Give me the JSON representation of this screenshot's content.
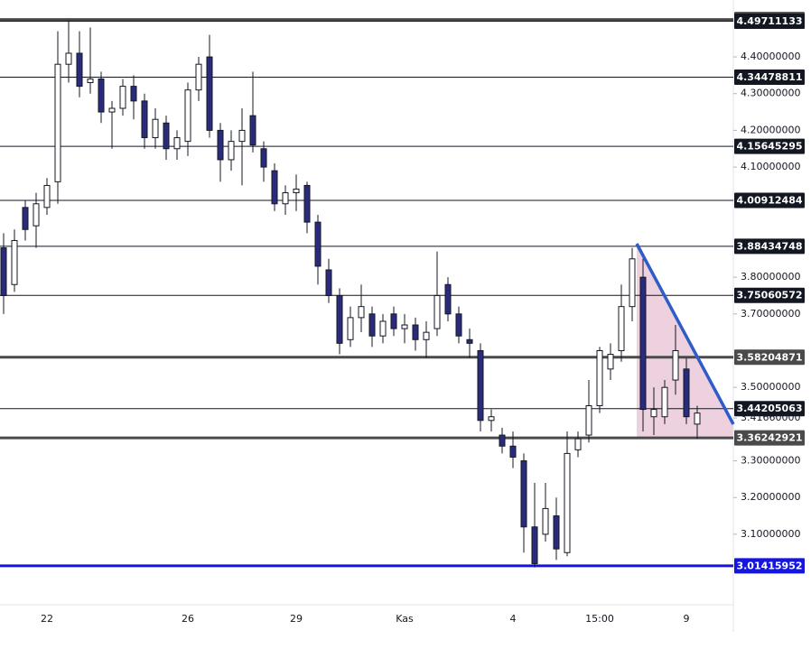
{
  "chart_data": {
    "type": "candlestick",
    "categories": [
      null,
      null,
      null,
      null,
      "22",
      null,
      null,
      null,
      null,
      null,
      null,
      null,
      null,
      null,
      null,
      null,
      null,
      "26",
      null,
      null,
      null,
      null,
      null,
      null,
      null,
      null,
      null,
      "29",
      null,
      null,
      null,
      null,
      null,
      null,
      null,
      null,
      null,
      "Kas",
      null,
      null,
      null,
      null,
      null,
      null,
      null,
      null,
      null,
      "4",
      null,
      null,
      null,
      null,
      null,
      null,
      null,
      "15:00",
      null,
      null,
      null,
      null,
      null,
      null,
      null,
      "9",
      null
    ],
    "open": [
      3.88,
      3.78,
      3.99,
      3.94,
      3.99,
      4.06,
      4.38,
      4.41,
      4.33,
      4.34,
      4.25,
      4.26,
      4.32,
      4.28,
      4.18,
      4.22,
      4.15,
      4.17,
      4.31,
      4.4,
      4.2,
      4.12,
      4.17,
      4.24,
      4.15,
      4.09,
      4.0,
      4.03,
      4.05,
      3.95,
      3.82,
      3.75,
      3.63,
      3.69,
      3.7,
      3.64,
      3.7,
      3.66,
      3.67,
      3.63,
      3.66,
      3.78,
      3.7,
      3.63,
      3.6,
      3.41,
      3.37,
      3.34,
      3.3,
      3.12,
      3.1,
      3.15,
      3.05,
      3.33,
      3.37,
      3.45,
      3.55,
      3.6,
      3.72,
      3.8,
      3.42,
      3.42,
      3.52,
      3.55,
      3.4
    ],
    "high": [
      3.92,
      3.93,
      4.01,
      4.03,
      4.07,
      4.47,
      4.5,
      4.47,
      4.48,
      4.36,
      4.28,
      4.34,
      4.35,
      4.3,
      4.26,
      4.24,
      4.2,
      4.33,
      4.4,
      4.46,
      4.22,
      4.2,
      4.26,
      4.36,
      4.17,
      4.11,
      4.05,
      4.08,
      4.06,
      3.97,
      3.85,
      3.77,
      3.72,
      3.78,
      3.72,
      3.7,
      3.72,
      3.7,
      3.69,
      3.68,
      3.87,
      3.8,
      3.72,
      3.66,
      3.62,
      3.44,
      3.39,
      3.38,
      3.32,
      3.24,
      3.24,
      3.2,
      3.38,
      3.38,
      3.52,
      3.61,
      3.62,
      3.78,
      3.88,
      3.85,
      3.5,
      3.52,
      3.67,
      3.58,
      3.45
    ],
    "low": [
      3.7,
      3.76,
      3.9,
      3.88,
      3.97,
      4.0,
      4.33,
      4.29,
      4.3,
      4.22,
      4.15,
      4.24,
      4.23,
      4.15,
      4.15,
      4.12,
      4.12,
      4.13,
      4.28,
      4.18,
      4.06,
      4.09,
      4.05,
      4.14,
      4.06,
      3.98,
      3.97,
      3.98,
      3.92,
      3.78,
      3.73,
      3.59,
      3.61,
      3.65,
      3.61,
      3.62,
      3.64,
      3.62,
      3.6,
      3.58,
      3.64,
      3.68,
      3.62,
      3.58,
      3.38,
      3.38,
      3.32,
      3.28,
      3.05,
      3.01,
      3.08,
      3.03,
      3.04,
      3.31,
      3.35,
      3.43,
      3.52,
      3.57,
      3.68,
      3.38,
      3.37,
      3.4,
      3.48,
      3.4,
      3.36
    ],
    "close": [
      3.75,
      3.9,
      3.93,
      4.0,
      4.05,
      4.38,
      4.41,
      4.32,
      4.34,
      4.25,
      4.26,
      4.32,
      4.28,
      4.18,
      4.23,
      4.15,
      4.18,
      4.31,
      4.38,
      4.2,
      4.12,
      4.17,
      4.2,
      4.16,
      4.1,
      4.0,
      4.03,
      4.04,
      3.95,
      3.83,
      3.75,
      3.62,
      3.69,
      3.72,
      3.64,
      3.68,
      3.66,
      3.67,
      3.63,
      3.65,
      3.75,
      3.7,
      3.64,
      3.62,
      3.41,
      3.42,
      3.34,
      3.31,
      3.12,
      3.02,
      3.17,
      3.06,
      3.32,
      3.36,
      3.45,
      3.6,
      3.59,
      3.72,
      3.85,
      3.44,
      3.44,
      3.5,
      3.6,
      3.42,
      3.43
    ],
    "up_color": "#ffffff",
    "down_color": "#2b2b7e",
    "ylim": [
      2.908,
      4.555
    ],
    "yticks": [
      {
        "value": 4.4,
        "label": "4.40000000"
      },
      {
        "value": 4.3,
        "label": "4.30000000"
      },
      {
        "value": 4.2,
        "label": "4.20000000"
      },
      {
        "value": 4.1,
        "label": "4.10000000"
      },
      {
        "value": 3.8,
        "label": "3.80000000"
      },
      {
        "value": 3.7,
        "label": "3.70000000"
      },
      {
        "value": 3.5,
        "label": "3.50000000"
      },
      {
        "value": 3.4166,
        "label": "3.41660000"
      },
      {
        "value": 3.3,
        "label": "3.30000000"
      },
      {
        "value": 3.2,
        "label": "3.20000000"
      },
      {
        "value": 3.1,
        "label": "3.10000000"
      }
    ],
    "levels": [
      {
        "value": 4.50188849,
        "color": "#4a4a4a"
      },
      {
        "value": 4.49711133,
        "color": "#131722"
      },
      {
        "value": 4.34478811,
        "color": "#131722"
      },
      {
        "value": 4.15645295,
        "color": "#131722"
      },
      {
        "value": 4.00912484,
        "color": "#131722"
      },
      {
        "value": 3.88434748,
        "color": "#131722"
      },
      {
        "value": 3.75060572,
        "color": "#131722"
      },
      {
        "value": 3.58204871,
        "color": "#4a4a4a"
      },
      {
        "value": 3.44205063,
        "color": "#131722"
      },
      {
        "value": 3.36242921,
        "color": "#4a4a4a"
      },
      {
        "value": 3.01415952,
        "color": "#1515e0"
      }
    ]
  }
}
